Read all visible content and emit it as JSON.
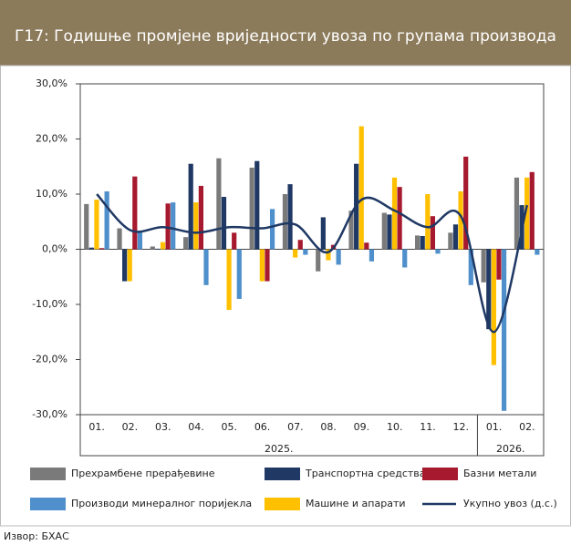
{
  "chart_data": {
    "type": "bar",
    "title": "Г17: Годишње промјене вриједности увоза по групама производа",
    "categories": [
      "01.",
      "02.",
      "03.",
      "04.",
      "05.",
      "06.",
      "07.",
      "08.",
      "09.",
      "10.",
      "11.",
      "12.",
      "01.",
      "02."
    ],
    "category_years": [
      "2025.",
      "2025.",
      "2025.",
      "2025.",
      "2025.",
      "2025.",
      "2025.",
      "2025.",
      "2025.",
      "2025.",
      "2025.",
      "2025.",
      "2026.",
      "2026."
    ],
    "ylim": [
      -30,
      30
    ],
    "yticks": [
      {
        "value": -30,
        "label": "-30,0%"
      },
      {
        "value": -20,
        "label": "-20,0%"
      },
      {
        "value": -10,
        "label": "-10,0%"
      },
      {
        "value": 0,
        "label": "0,0%"
      },
      {
        "value": 10,
        "label": "10,0%"
      },
      {
        "value": 20,
        "label": "20,0%"
      },
      {
        "value": 30,
        "label": "30,0%"
      }
    ],
    "series": [
      {
        "name": "Прехрамбене прерађевине",
        "color": "#7a7a7a",
        "values": [
          8.2,
          3.8,
          0.5,
          2.2,
          16.5,
          14.8,
          10.0,
          -4.0,
          7.0,
          6.6,
          2.5,
          3.0,
          -6.0,
          13.0
        ]
      },
      {
        "name": "Транспортна средства",
        "color": "#1f3864",
        "values": [
          0.3,
          -5.8,
          0.1,
          15.5,
          9.5,
          16.0,
          11.8,
          5.8,
          15.5,
          6.3,
          2.4,
          4.5,
          -14.5,
          8.0
        ]
      },
      {
        "name": "Базни метали",
        "color": "#a6192e",
        "values": [
          0.2,
          13.2,
          8.3,
          11.5,
          3.0,
          -5.8,
          1.7,
          0.8,
          1.2,
          11.3,
          6.0,
          16.8,
          -5.5,
          14.0
        ]
      },
      {
        "name": "Производи минералног поријекла",
        "color": "#4f8fcb",
        "values": [
          10.5,
          3.2,
          8.5,
          -6.5,
          -9.0,
          7.3,
          -1.0,
          -2.8,
          -2.2,
          -3.3,
          -0.8,
          -6.5,
          -29.3,
          -1.0
        ]
      },
      {
        "name": "Машине и апарати",
        "color": "#ffc000",
        "values": [
          9.0,
          -5.8,
          1.3,
          8.5,
          -11.0,
          -5.8,
          -1.5,
          -2.0,
          22.3,
          13.0,
          10.0,
          10.5,
          -21.0,
          13.0
        ]
      },
      {
        "name": "Укупно увоз (д.с.)",
        "color": "#1f3864",
        "chart": "line",
        "values": [
          10.0,
          3.5,
          4.0,
          3.0,
          4.0,
          3.8,
          4.5,
          -0.5,
          9.0,
          7.0,
          4.0,
          6.0,
          -15.0,
          8.0
        ]
      }
    ],
    "source": "Извор: БХАС"
  }
}
